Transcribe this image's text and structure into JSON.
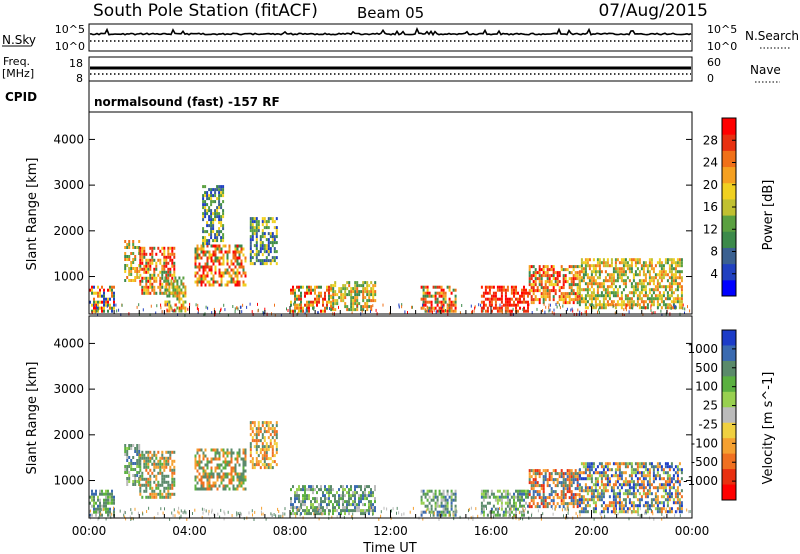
{
  "header": {
    "station": "South Pole Station (fitACF)",
    "beam": "Beam 05",
    "date": "07/Aug/2015"
  },
  "strip_labels": {
    "nsky": "N.Sky",
    "nsky_top": "10^5",
    "nsky_bot": "10^0",
    "nsearch": "N.Search",
    "nsearch_top": "10^5",
    "nsearch_bot": "10^0",
    "freq_line1": "Freq.",
    "freq_line2": "[MHz]",
    "freq_top": "18",
    "freq_bot": "8",
    "nave": "Nave",
    "nave_top": "60",
    "nave_bot": "0",
    "cpid": "CPID",
    "cpid_text": "normalsound (fast) -157 RF"
  },
  "chart_data": [
    {
      "type": "heatmap",
      "panel": "power",
      "xlabel": "Time UT",
      "ylabel": "Slant Range [km]",
      "xlim_hours": [
        0,
        24
      ],
      "ylim_km": [
        180,
        4600
      ],
      "y_ticks": [
        1000,
        2000,
        3000,
        4000
      ],
      "x_ticks": [
        "00:00",
        "04:00",
        "08:00",
        "12:00",
        "16:00",
        "20:00",
        "00:00"
      ],
      "colorbar": {
        "label": "Power [dB]",
        "ticks": [
          4,
          8,
          12,
          16,
          20,
          24,
          28
        ],
        "colors": [
          "#0000ff",
          "#2040c0",
          "#3a6090",
          "#3c8a4a",
          "#5aa040",
          "#c0c030",
          "#f0d020",
          "#f5a020",
          "#f07018",
          "#e83010",
          "#ff0000"
        ]
      },
      "echo_regions": [
        {
          "t": [
            0.0,
            1.0
          ],
          "r": [
            250,
            800
          ],
          "level": "mixed"
        },
        {
          "t": [
            1.4,
            2.0
          ],
          "r": [
            900,
            1800
          ],
          "level": "medium"
        },
        {
          "t": [
            2.0,
            3.4
          ],
          "r": [
            600,
            1650
          ],
          "level": "high"
        },
        {
          "t": [
            3.0,
            3.8
          ],
          "r": [
            250,
            1000
          ],
          "level": "medium"
        },
        {
          "t": [
            4.2,
            6.2
          ],
          "r": [
            800,
            1700
          ],
          "level": "high"
        },
        {
          "t": [
            4.5,
            5.3
          ],
          "r": [
            1750,
            3000
          ],
          "level": "low"
        },
        {
          "t": [
            6.4,
            7.5
          ],
          "r": [
            1300,
            2300
          ],
          "level": "low"
        },
        {
          "t": [
            8.0,
            9.6
          ],
          "r": [
            250,
            800
          ],
          "level": "high"
        },
        {
          "t": [
            9.6,
            11.4
          ],
          "r": [
            250,
            900
          ],
          "level": "medium"
        },
        {
          "t": [
            13.2,
            14.6
          ],
          "r": [
            250,
            800
          ],
          "level": "high"
        },
        {
          "t": [
            15.6,
            17.5
          ],
          "r": [
            250,
            800
          ],
          "level": "very_high"
        },
        {
          "t": [
            17.5,
            19.5
          ],
          "r": [
            450,
            1250
          ],
          "level": "high"
        },
        {
          "t": [
            19.5,
            23.6
          ],
          "r": [
            300,
            1400
          ],
          "level": "medium"
        }
      ]
    },
    {
      "type": "heatmap",
      "panel": "velocity",
      "xlabel": "Time UT",
      "ylabel": "Slant Range [km]",
      "xlim_hours": [
        0,
        24
      ],
      "ylim_km": [
        180,
        4600
      ],
      "y_ticks": [
        1000,
        2000,
        3000,
        4000
      ],
      "x_ticks": [
        "00:00",
        "04:00",
        "08:00",
        "12:00",
        "16:00",
        "20:00",
        "00:00"
      ],
      "colorbar": {
        "label": "Velocity [m s^-1]",
        "ticks": [
          "1000",
          "500",
          "100",
          "25",
          "-25",
          "-100",
          "-500",
          "-1000"
        ],
        "colors": [
          "#1c3cc8",
          "#3a6ab0",
          "#5a8a6a",
          "#5ab040",
          "#98d050",
          "#bbbbbb",
          "#f0d040",
          "#f5a030",
          "#f07020",
          "#e83010",
          "#ff0000"
        ]
      },
      "echo_regions": [
        {
          "t": [
            0.0,
            1.0
          ],
          "r": [
            250,
            800
          ],
          "level": "green"
        },
        {
          "t": [
            1.4,
            2.0
          ],
          "r": [
            900,
            1800
          ],
          "level": "green"
        },
        {
          "t": [
            2.0,
            3.4
          ],
          "r": [
            600,
            1650
          ],
          "level": "green_orange"
        },
        {
          "t": [
            4.2,
            6.2
          ],
          "r": [
            800,
            1700
          ],
          "level": "green_orange"
        },
        {
          "t": [
            6.4,
            7.5
          ],
          "r": [
            1300,
            2300
          ],
          "level": "orange"
        },
        {
          "t": [
            8.0,
            11.4
          ],
          "r": [
            250,
            900
          ],
          "level": "green"
        },
        {
          "t": [
            13.2,
            14.6
          ],
          "r": [
            250,
            800
          ],
          "level": "green"
        },
        {
          "t": [
            15.6,
            17.5
          ],
          "r": [
            250,
            800
          ],
          "level": "green"
        },
        {
          "t": [
            17.5,
            19.5
          ],
          "r": [
            450,
            1250
          ],
          "level": "orange_blue"
        },
        {
          "t": [
            19.5,
            23.6
          ],
          "r": [
            300,
            1400
          ],
          "level": "blue_orange"
        }
      ]
    }
  ]
}
